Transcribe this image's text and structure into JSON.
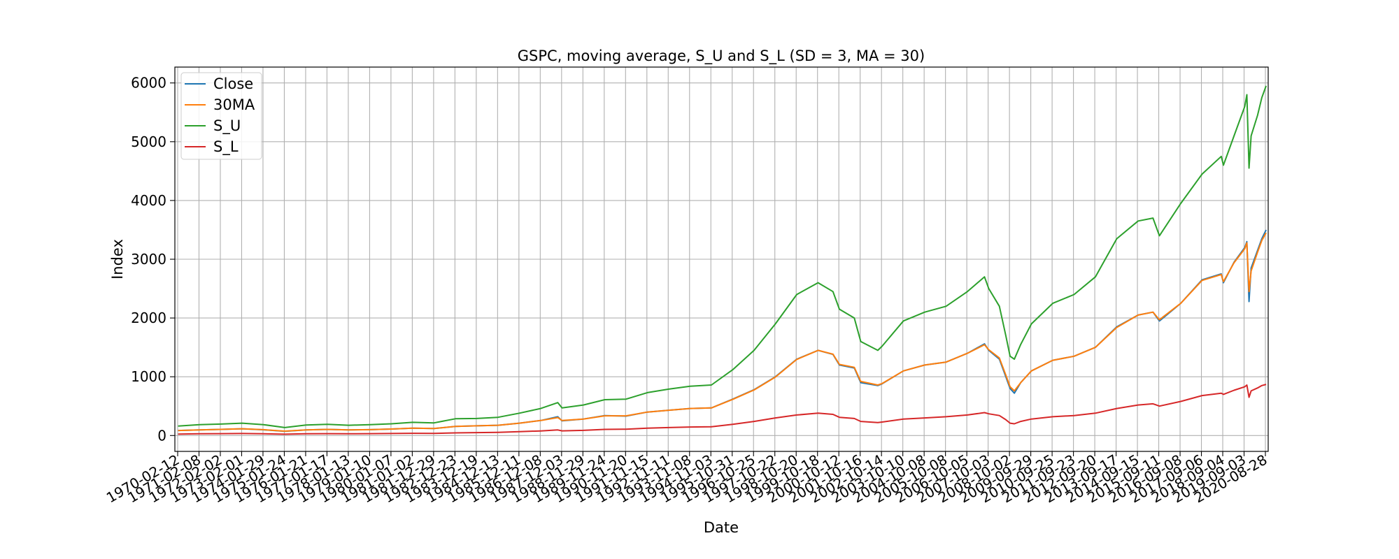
{
  "chart_data": {
    "type": "line",
    "title": "GSPC, moving average, S_U and S_L (SD = 3, MA = 30)",
    "xlabel": "Date",
    "ylabel": "Index",
    "ylim": [
      -270,
      6270
    ],
    "yticks": [
      0,
      1000,
      2000,
      3000,
      4000,
      5000,
      6000
    ],
    "xlim": [
      1969.85,
      2021.1
    ],
    "grid": true,
    "legend_position": "top-left",
    "x_tick_labels": [
      "1970-02-12",
      "1971-02-08",
      "1972-02-02",
      "1973-02-01",
      "1974-01-29",
      "1975-01-24",
      "1976-01-21",
      "1977-01-17",
      "1978-01-13",
      "1979-01-10",
      "1980-01-07",
      "1981-01-02",
      "1981-12-29",
      "1982-12-23",
      "1983-12-19",
      "1984-12-13",
      "1985-12-11",
      "1986-12-08",
      "1987-12-03",
      "1988-11-29",
      "1989-11-24",
      "1990-11-20",
      "1991-11-15",
      "1992-11-11",
      "1993-11-08",
      "1994-11-03",
      "1995-10-31",
      "1996-10-25",
      "1997-10-22",
      "1998-10-20",
      "1999-10-18",
      "2000-10-12",
      "2001-10-16",
      "2002-10-14",
      "2003-10-10",
      "2004-10-08",
      "2005-10-08",
      "2006-10-05",
      "2007-10-03",
      "2008-10-02",
      "2009-09-29",
      "2010-09-25",
      "2011-09-23",
      "2012-09-20",
      "2013-09-17",
      "2014-09-15",
      "2015-09-11",
      "2016-09-08",
      "2017-09-06",
      "2018-09-04",
      "2019-09-03",
      "2020-08-28"
    ],
    "x": [
      1970.0,
      1971.0,
      1972.0,
      1973.0,
      1974.0,
      1975.0,
      1976.0,
      1977.0,
      1978.0,
      1979.0,
      1980.0,
      1981.0,
      1982.0,
      1983.0,
      1984.0,
      1985.0,
      1986.0,
      1987.0,
      1987.8,
      1988.0,
      1989.0,
      1990.0,
      1991.0,
      1992.0,
      1993.0,
      1994.0,
      1995.0,
      1996.0,
      1997.0,
      1998.0,
      1999.0,
      2000.0,
      2000.7,
      2001.0,
      2001.7,
      2002.0,
      2002.8,
      2003.0,
      2004.0,
      2005.0,
      2006.0,
      2007.0,
      2007.8,
      2008.0,
      2008.5,
      2008.8,
      2009.0,
      2009.2,
      2009.5,
      2010.0,
      2011.0,
      2012.0,
      2013.0,
      2014.0,
      2015.0,
      2015.7,
      2016.0,
      2017.0,
      2018.0,
      2018.9,
      2019.0,
      2019.5,
      2020.0,
      2020.1,
      2020.2,
      2020.3,
      2020.6,
      2020.8,
      2021.0
    ],
    "series": [
      {
        "name": "Close",
        "color": "#1f77b4",
        "values": [
          85,
          95,
          105,
          115,
          98,
          72,
          95,
          105,
          95,
          100,
          110,
          125,
          120,
          155,
          165,
          175,
          210,
          255,
          320,
          250,
          280,
          340,
          330,
          400,
          430,
          460,
          470,
          620,
          780,
          1000,
          1300,
          1450,
          1380,
          1200,
          1150,
          900,
          850,
          880,
          1100,
          1200,
          1250,
          1400,
          1560,
          1450,
          1300,
          1000,
          800,
          720,
          900,
          1100,
          1280,
          1350,
          1500,
          1850,
          2050,
          2100,
          1950,
          2250,
          2650,
          2750,
          2600,
          2950,
          3200,
          3300,
          2280,
          2850,
          3150,
          3350,
          3500
        ]
      },
      {
        "name": "30MA",
        "color": "#ff7f0e",
        "values": [
          85,
          95,
          105,
          115,
          100,
          75,
          95,
          105,
          95,
          100,
          110,
          125,
          120,
          155,
          165,
          175,
          210,
          255,
          305,
          255,
          280,
          335,
          335,
          400,
          430,
          460,
          470,
          615,
          775,
          995,
          1295,
          1450,
          1385,
          1210,
          1160,
          920,
          860,
          885,
          1100,
          1200,
          1250,
          1400,
          1545,
          1460,
          1320,
          1030,
          830,
          760,
          900,
          1100,
          1280,
          1350,
          1500,
          1840,
          2050,
          2100,
          1970,
          2250,
          2640,
          2740,
          2620,
          2940,
          3180,
          3280,
          2450,
          2800,
          3120,
          3320,
          3450
        ]
      },
      {
        "name": "S_U",
        "color": "#2ca02c",
        "values": [
          160,
          185,
          195,
          210,
          185,
          135,
          180,
          190,
          175,
          185,
          200,
          225,
          215,
          285,
          290,
          310,
          380,
          460,
          560,
          470,
          520,
          610,
          620,
          730,
          790,
          840,
          860,
          1120,
          1450,
          1900,
          2400,
          2600,
          2450,
          2150,
          2000,
          1600,
          1450,
          1520,
          1950,
          2100,
          2200,
          2450,
          2700,
          2500,
          2200,
          1700,
          1350,
          1300,
          1550,
          1900,
          2250,
          2400,
          2700,
          3350,
          3650,
          3700,
          3400,
          3950,
          4450,
          4750,
          4600,
          5100,
          5600,
          5800,
          4550,
          5100,
          5450,
          5750,
          5950
        ]
      },
      {
        "name": "S_L",
        "color": "#d62728",
        "values": [
          25,
          30,
          32,
          34,
          30,
          22,
          30,
          32,
          30,
          32,
          35,
          38,
          37,
          45,
          50,
          55,
          65,
          78,
          95,
          80,
          88,
          105,
          108,
          125,
          135,
          145,
          150,
          190,
          240,
          300,
          350,
          380,
          360,
          310,
          290,
          240,
          220,
          230,
          280,
          300,
          320,
          350,
          390,
          370,
          340,
          270,
          210,
          200,
          240,
          280,
          320,
          340,
          380,
          460,
          520,
          540,
          500,
          580,
          680,
          720,
          700,
          770,
          830,
          860,
          650,
          760,
          810,
          850,
          870
        ]
      }
    ]
  }
}
